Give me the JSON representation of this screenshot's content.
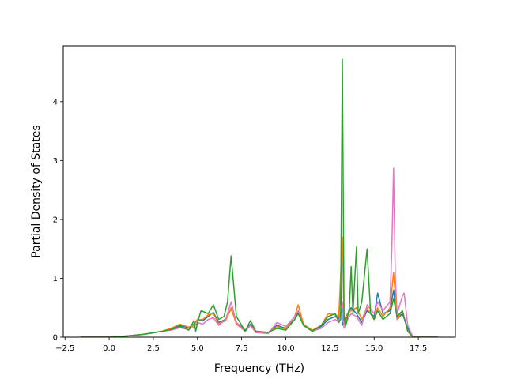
{
  "chart_data": {
    "type": "line",
    "title": "",
    "xlabel": "Frequency (THz)",
    "ylabel": "Partial Density of States",
    "xlim": [
      -2.6,
      19.6
    ],
    "ylim": [
      0,
      4.95
    ],
    "xticks": [
      -2.5,
      0.0,
      2.5,
      5.0,
      7.5,
      10.0,
      12.5,
      15.0,
      17.5
    ],
    "xtick_labels": [
      "−2.5",
      "0.0",
      "2.5",
      "5.0",
      "7.5",
      "10.0",
      "12.5",
      "15.0",
      "17.5"
    ],
    "yticks": [
      0,
      1,
      2,
      3,
      4
    ],
    "ytick_labels": [
      "0",
      "1",
      "2",
      "3",
      "4"
    ],
    "grid": false,
    "legend": "none",
    "series": [
      {
        "color": "#1f77b4",
        "points": [
          [
            -1.6,
            0
          ],
          [
            0,
            0
          ],
          [
            1,
            0.02
          ],
          [
            2,
            0.05
          ],
          [
            3,
            0.1
          ],
          [
            3.5,
            0.14
          ],
          [
            4,
            0.2
          ],
          [
            4.5,
            0.16
          ],
          [
            4.8,
            0.22
          ],
          [
            5,
            0.3
          ],
          [
            5.3,
            0.28
          ],
          [
            5.6,
            0.35
          ],
          [
            5.9,
            0.42
          ],
          [
            6.2,
            0.25
          ],
          [
            6.6,
            0.3
          ],
          [
            6.9,
            0.48
          ],
          [
            7.2,
            0.25
          ],
          [
            7.7,
            0.12
          ],
          [
            8,
            0.22
          ],
          [
            8.3,
            0.1
          ],
          [
            9,
            0.08
          ],
          [
            9.5,
            0.2
          ],
          [
            10,
            0.15
          ],
          [
            10.5,
            0.3
          ],
          [
            10.7,
            0.45
          ],
          [
            11,
            0.2
          ],
          [
            11.5,
            0.1
          ],
          [
            12,
            0.18
          ],
          [
            12.4,
            0.3
          ],
          [
            12.8,
            0.35
          ],
          [
            13.0,
            0.3
          ],
          [
            13.1,
            0.9
          ],
          [
            13.2,
            0.2
          ],
          [
            13.4,
            0.35
          ],
          [
            13.7,
            0.5
          ],
          [
            14.0,
            0.4
          ],
          [
            14.3,
            0.25
          ],
          [
            14.6,
            0.45
          ],
          [
            15.0,
            0.35
          ],
          [
            15.2,
            0.75
          ],
          [
            15.5,
            0.4
          ],
          [
            15.9,
            0.45
          ],
          [
            16.1,
            0.8
          ],
          [
            16.3,
            0.3
          ],
          [
            16.6,
            0.4
          ],
          [
            16.9,
            0.15
          ],
          [
            17.2,
            0
          ],
          [
            18.6,
            0
          ]
        ]
      },
      {
        "color": "#ff7f0e",
        "points": [
          [
            -1.6,
            0
          ],
          [
            0,
            0
          ],
          [
            1,
            0.02
          ],
          [
            2,
            0.05
          ],
          [
            3,
            0.1
          ],
          [
            3.5,
            0.15
          ],
          [
            4,
            0.22
          ],
          [
            4.5,
            0.17
          ],
          [
            4.8,
            0.2
          ],
          [
            5,
            0.3
          ],
          [
            5.3,
            0.3
          ],
          [
            5.6,
            0.38
          ],
          [
            5.9,
            0.4
          ],
          [
            6.2,
            0.22
          ],
          [
            6.6,
            0.28
          ],
          [
            6.9,
            0.5
          ],
          [
            7.2,
            0.22
          ],
          [
            7.7,
            0.1
          ],
          [
            8,
            0.2
          ],
          [
            8.3,
            0.08
          ],
          [
            9,
            0.07
          ],
          [
            9.5,
            0.18
          ],
          [
            10,
            0.14
          ],
          [
            10.5,
            0.35
          ],
          [
            10.7,
            0.55
          ],
          [
            11,
            0.22
          ],
          [
            11.5,
            0.12
          ],
          [
            12,
            0.2
          ],
          [
            12.4,
            0.4
          ],
          [
            12.8,
            0.38
          ],
          [
            13.0,
            0.35
          ],
          [
            13.2,
            1.7
          ],
          [
            13.3,
            0.2
          ],
          [
            13.5,
            0.4
          ],
          [
            13.7,
            0.45
          ],
          [
            14.0,
            0.5
          ],
          [
            14.3,
            0.3
          ],
          [
            14.6,
            0.5
          ],
          [
            15.0,
            0.3
          ],
          [
            15.2,
            0.5
          ],
          [
            15.5,
            0.35
          ],
          [
            15.9,
            0.5
          ],
          [
            16.1,
            1.1
          ],
          [
            16.3,
            0.3
          ],
          [
            16.6,
            0.45
          ],
          [
            16.9,
            0.1
          ],
          [
            17.2,
            0
          ],
          [
            18.6,
            0
          ]
        ]
      },
      {
        "color": "#e377c2",
        "points": [
          [
            -1.6,
            0
          ],
          [
            0,
            0
          ],
          [
            1,
            0.02
          ],
          [
            2,
            0.05
          ],
          [
            3,
            0.1
          ],
          [
            3.5,
            0.12
          ],
          [
            4,
            0.16
          ],
          [
            4.5,
            0.13
          ],
          [
            4.8,
            0.18
          ],
          [
            5,
            0.25
          ],
          [
            5.3,
            0.22
          ],
          [
            5.6,
            0.3
          ],
          [
            5.9,
            0.33
          ],
          [
            6.2,
            0.2
          ],
          [
            6.6,
            0.3
          ],
          [
            6.9,
            0.6
          ],
          [
            7.2,
            0.25
          ],
          [
            7.7,
            0.1
          ],
          [
            8,
            0.2
          ],
          [
            8.3,
            0.08
          ],
          [
            9,
            0.06
          ],
          [
            9.5,
            0.25
          ],
          [
            10,
            0.18
          ],
          [
            10.5,
            0.35
          ],
          [
            10.7,
            0.45
          ],
          [
            11,
            0.2
          ],
          [
            11.5,
            0.1
          ],
          [
            12,
            0.15
          ],
          [
            12.4,
            0.25
          ],
          [
            12.8,
            0.3
          ],
          [
            13.0,
            0.25
          ],
          [
            13.2,
            0.6
          ],
          [
            13.3,
            0.15
          ],
          [
            13.5,
            0.3
          ],
          [
            13.7,
            0.4
          ],
          [
            14.0,
            0.35
          ],
          [
            14.3,
            0.2
          ],
          [
            14.6,
            0.55
          ],
          [
            15.0,
            0.4
          ],
          [
            15.2,
            0.6
          ],
          [
            15.5,
            0.45
          ],
          [
            15.9,
            0.6
          ],
          [
            16.0,
            1.5
          ],
          [
            16.1,
            2.87
          ],
          [
            16.2,
            1.0
          ],
          [
            16.3,
            0.4
          ],
          [
            16.6,
            0.7
          ],
          [
            16.7,
            0.75
          ],
          [
            16.9,
            0.2
          ],
          [
            17.2,
            0
          ],
          [
            18.6,
            0
          ]
        ]
      },
      {
        "color": "#2ca02c",
        "points": [
          [
            -1.6,
            0
          ],
          [
            0,
            0
          ],
          [
            1,
            0.02
          ],
          [
            2,
            0.05
          ],
          [
            3,
            0.1
          ],
          [
            3.5,
            0.13
          ],
          [
            4,
            0.18
          ],
          [
            4.3,
            0.15
          ],
          [
            4.5,
            0.12
          ],
          [
            4.8,
            0.28
          ],
          [
            4.9,
            0.1
          ],
          [
            5,
            0.25
          ],
          [
            5.2,
            0.45
          ],
          [
            5.6,
            0.4
          ],
          [
            5.9,
            0.55
          ],
          [
            6.2,
            0.3
          ],
          [
            6.5,
            0.35
          ],
          [
            6.7,
            0.6
          ],
          [
            6.9,
            1.38
          ],
          [
            7.2,
            0.35
          ],
          [
            7.5,
            0.2
          ],
          [
            7.7,
            0.1
          ],
          [
            8,
            0.28
          ],
          [
            8.3,
            0.1
          ],
          [
            9,
            0.08
          ],
          [
            9.5,
            0.15
          ],
          [
            10,
            0.12
          ],
          [
            10.5,
            0.3
          ],
          [
            10.7,
            0.4
          ],
          [
            11,
            0.2
          ],
          [
            11.5,
            0.1
          ],
          [
            12,
            0.2
          ],
          [
            12.4,
            0.35
          ],
          [
            12.8,
            0.4
          ],
          [
            13.0,
            0.25
          ],
          [
            13.1,
            0.3
          ],
          [
            13.2,
            4.72
          ],
          [
            13.3,
            0.3
          ],
          [
            13.4,
            0.2
          ],
          [
            13.6,
            0.5
          ],
          [
            13.7,
            1.2
          ],
          [
            13.8,
            0.4
          ],
          [
            14.0,
            1.53
          ],
          [
            14.1,
            0.4
          ],
          [
            14.3,
            0.6
          ],
          [
            14.6,
            1.5
          ],
          [
            14.8,
            0.4
          ],
          [
            15.0,
            0.3
          ],
          [
            15.2,
            0.45
          ],
          [
            15.5,
            0.3
          ],
          [
            15.9,
            0.4
          ],
          [
            16.1,
            0.65
          ],
          [
            16.3,
            0.35
          ],
          [
            16.6,
            0.45
          ],
          [
            16.9,
            0.1
          ],
          [
            17.2,
            0
          ],
          [
            18.6,
            0
          ]
        ]
      }
    ]
  }
}
